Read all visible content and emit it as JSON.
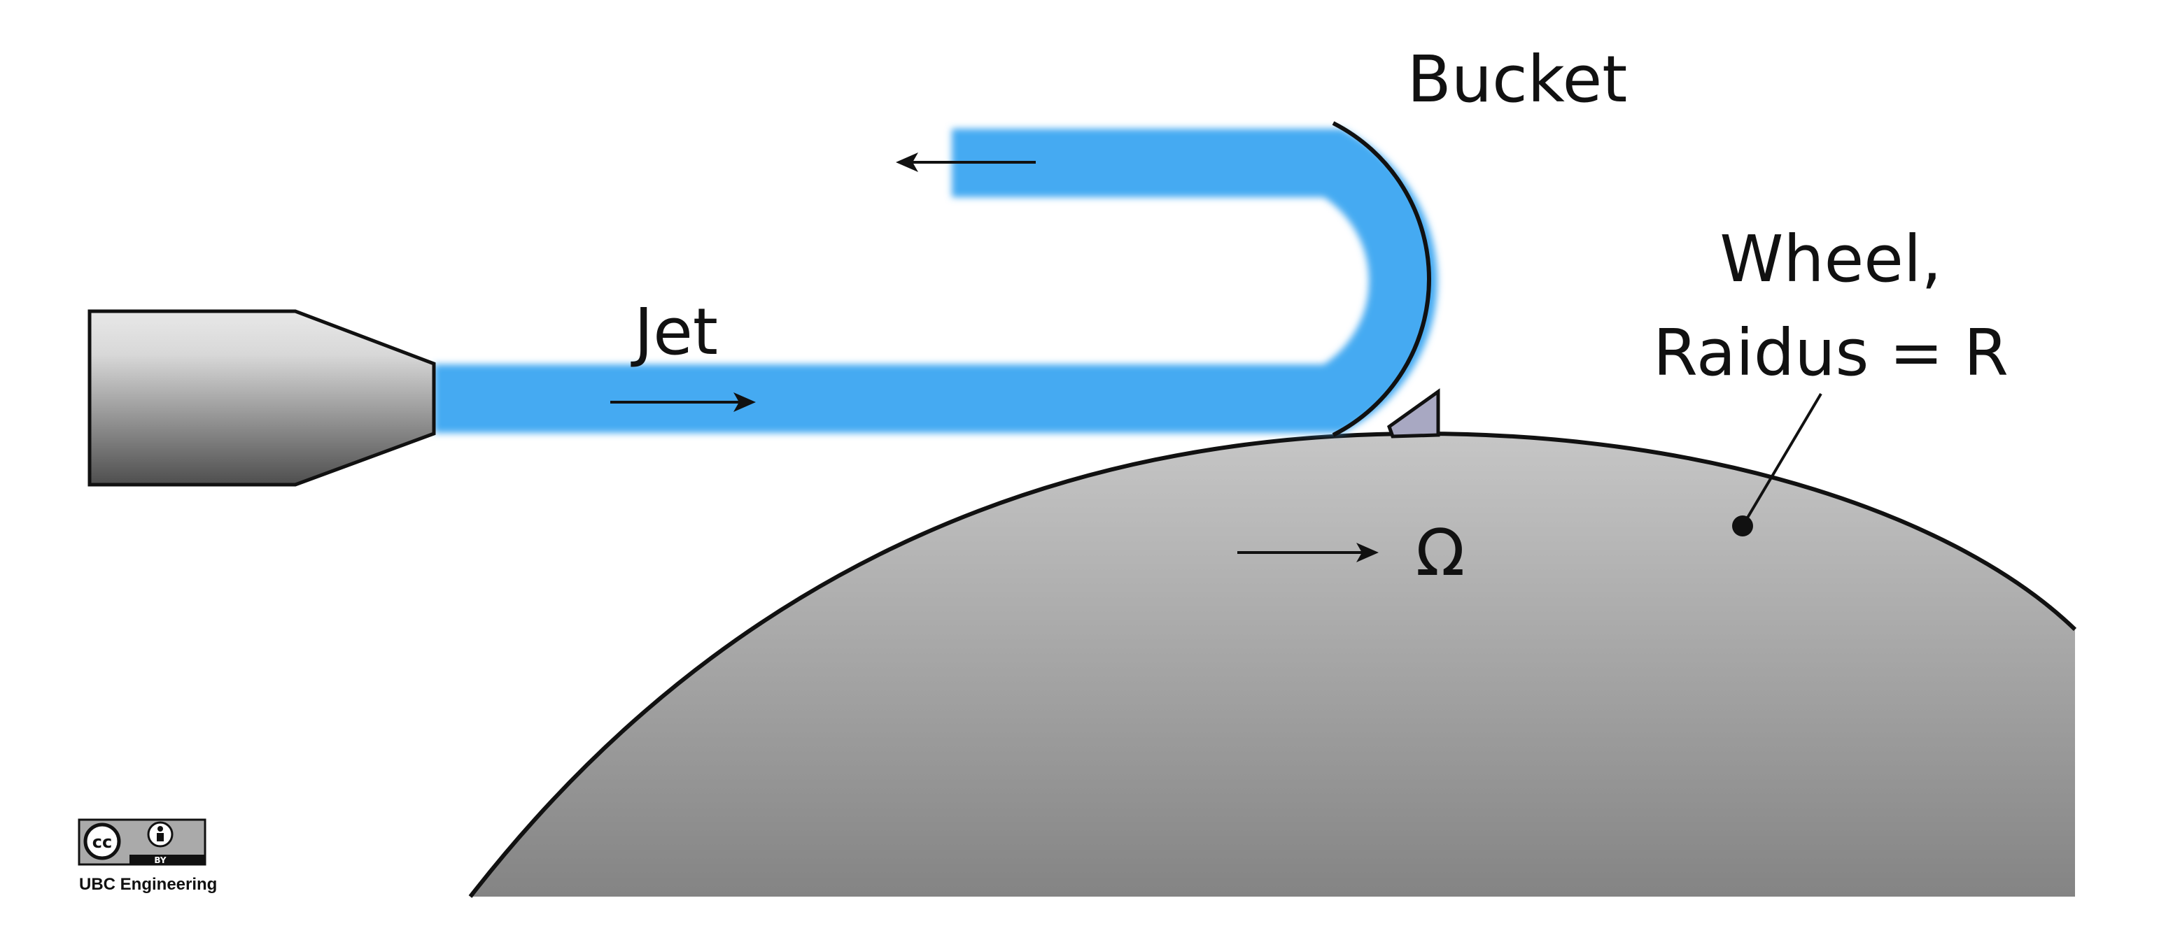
{
  "labels": {
    "bucket": "Bucket",
    "jet": "Jet",
    "wheel_line1": "Wheel,",
    "wheel_line2": "Raidus = R",
    "omega": "Ω"
  },
  "license": {
    "badge_text": "BY",
    "credit": "UBC Engineering"
  },
  "colors": {
    "water": "#44aaf2",
    "wheel_top": "#c4c4c4",
    "wheel_bottom": "#858585",
    "nozzle_light": "#e6e6e6",
    "nozzle_dark": "#555555",
    "bucket_mount": "#a8a8c2",
    "outline": "#111111"
  },
  "icons": [
    "nozzle-icon",
    "creative-commons-icon",
    "attribution-icon"
  ]
}
